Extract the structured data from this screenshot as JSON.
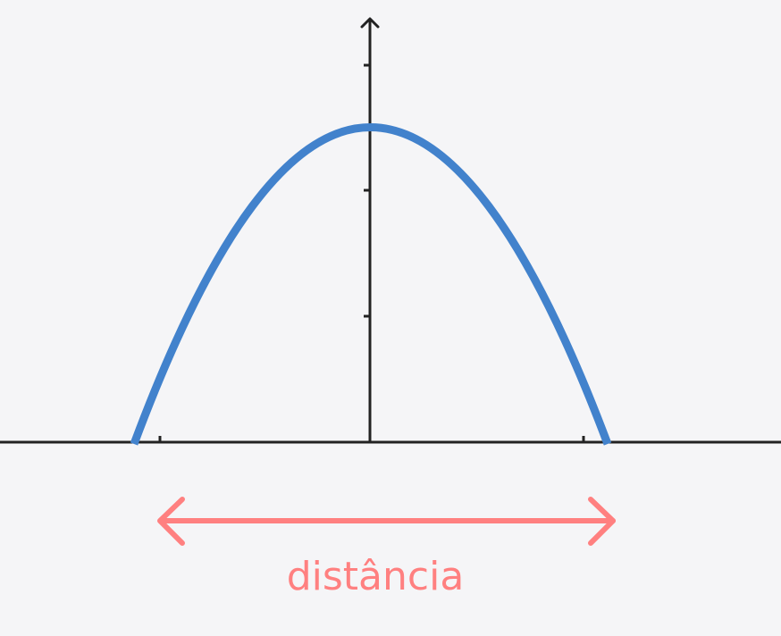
{
  "diagram": {
    "label": "distância",
    "colors": {
      "background": "#f5f5f7",
      "axis": "#222222",
      "curve": "#4282cc",
      "arrow": "#ff8080",
      "label": "#ff8080"
    },
    "curve": {
      "type": "parabola",
      "opens": "down",
      "vertex_on": "y-axis",
      "roots_symmetric": true
    },
    "axes": {
      "x_ticks": 3,
      "y_ticks": 3,
      "y_arrow": true
    },
    "arrow": {
      "type": "double-headed",
      "spans": "between-roots"
    }
  }
}
